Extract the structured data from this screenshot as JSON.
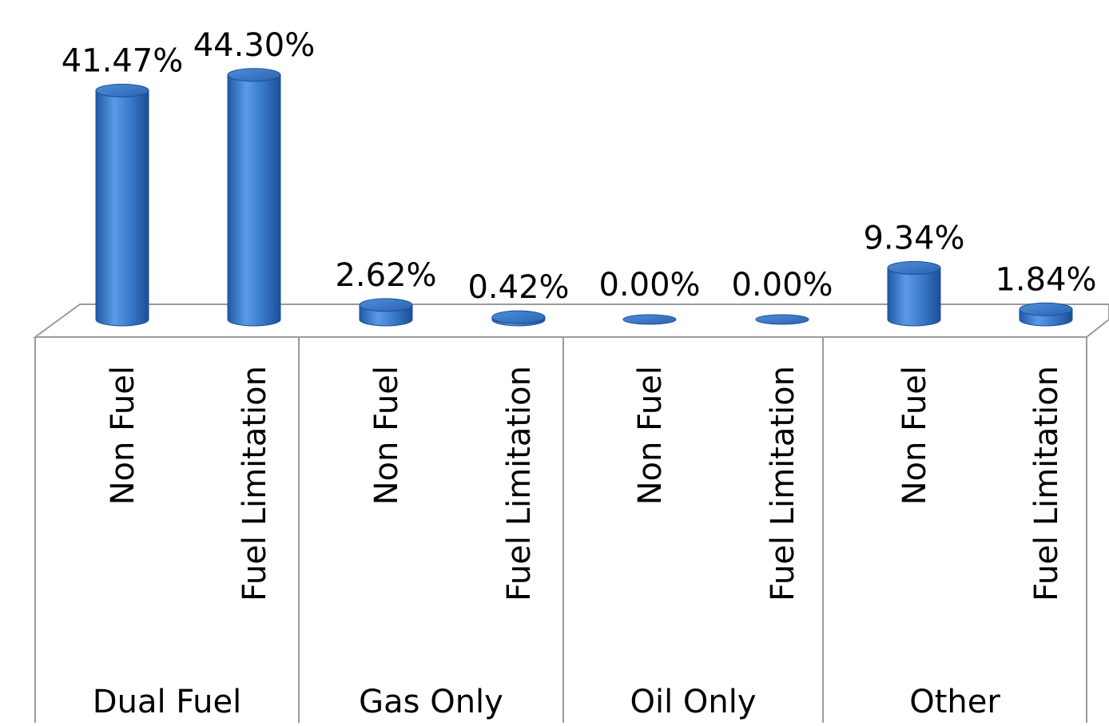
{
  "chart_data": {
    "type": "bar",
    "style": "3d-cylinder",
    "title": "",
    "xlabel": "",
    "ylabel": "",
    "ylim": [
      0,
      46
    ],
    "grid": false,
    "legend": "none",
    "bar_color": "#3f7fd0",
    "groups": [
      {
        "name": "Dual Fuel",
        "bars": [
          {
            "category": "Non Fuel",
            "value": 41.47,
            "label": "41.47%"
          },
          {
            "category": "Fuel Limitation",
            "value": 44.3,
            "label": "44.30%"
          }
        ]
      },
      {
        "name": "Gas Only",
        "bars": [
          {
            "category": "Non Fuel",
            "value": 2.62,
            "label": "2.62%"
          },
          {
            "category": "Fuel Limitation",
            "value": 0.42,
            "label": "0.42%"
          }
        ]
      },
      {
        "name": "Oil Only",
        "bars": [
          {
            "category": "Non Fuel",
            "value": 0.0,
            "label": "0.00%"
          },
          {
            "category": "Fuel Limitation",
            "value": 0.0,
            "label": "0.00%"
          }
        ]
      },
      {
        "name": "Other",
        "bars": [
          {
            "category": "Non Fuel",
            "value": 9.34,
            "label": "9.34%"
          },
          {
            "category": "Fuel Limitation",
            "value": 1.84,
            "label": "1.84%"
          }
        ]
      }
    ]
  }
}
